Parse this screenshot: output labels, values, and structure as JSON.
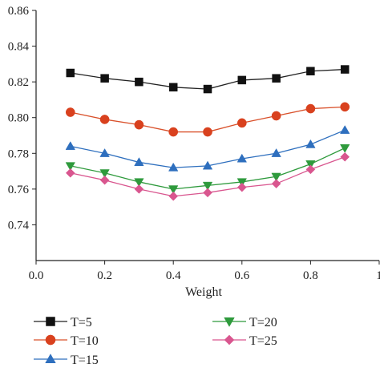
{
  "chart_data": {
    "type": "line",
    "title": "",
    "xlabel": "Weight",
    "ylabel": "",
    "xlim": [
      0.0,
      1.0
    ],
    "ylim": [
      0.72,
      0.86
    ],
    "x_ticks": [
      0.0,
      0.2,
      0.4,
      0.6,
      0.8,
      1.0
    ],
    "x_tick_labels": [
      "0.0",
      "0.2",
      "0.4",
      "0.6",
      "0.8",
      "1"
    ],
    "y_ticks": [
      0.74,
      0.76,
      0.78,
      0.8,
      0.82,
      0.84,
      0.86
    ],
    "y_tick_labels": [
      "0.74",
      "0.76",
      "0.78",
      "0.80",
      "0.82",
      "0.84",
      "0.86"
    ],
    "grid": false,
    "legend_position": "bottom",
    "x": [
      0.1,
      0.2,
      0.3,
      0.4,
      0.5,
      0.6,
      0.7,
      0.8,
      0.9
    ],
    "series": [
      {
        "name": "T=5",
        "marker": "square",
        "line_color": "#222222",
        "marker_color": "#111111",
        "values": [
          0.825,
          0.822,
          0.82,
          0.817,
          0.816,
          0.821,
          0.822,
          0.826,
          0.827
        ]
      },
      {
        "name": "T=10",
        "marker": "circle",
        "line_color": "#d9502a",
        "marker_color": "#d9411e",
        "values": [
          0.803,
          0.799,
          0.796,
          0.792,
          0.792,
          0.797,
          0.801,
          0.805,
          0.806
        ]
      },
      {
        "name": "T=15",
        "marker": "triangle-up",
        "line_color": "#2e6fbe",
        "marker_color": "#2e6fbe",
        "values": [
          0.784,
          0.78,
          0.775,
          0.772,
          0.773,
          0.777,
          0.78,
          0.785,
          0.793
        ]
      },
      {
        "name": "T=20",
        "marker": "triangle-down",
        "line_color": "#2e9a3c",
        "marker_color": "#2e9a3c",
        "values": [
          0.773,
          0.769,
          0.764,
          0.76,
          0.762,
          0.764,
          0.767,
          0.774,
          0.783
        ]
      },
      {
        "name": "T=25",
        "marker": "diamond",
        "line_color": "#d9568f",
        "marker_color": "#d9568f",
        "values": [
          0.769,
          0.765,
          0.76,
          0.756,
          0.758,
          0.761,
          0.763,
          0.771,
          0.778
        ]
      }
    ]
  }
}
